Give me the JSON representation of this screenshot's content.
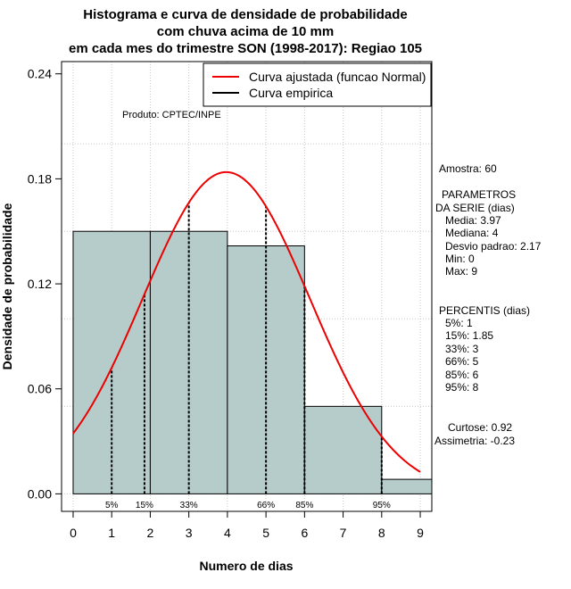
{
  "chart_data": {
    "type": "bar",
    "title_lines": [
      "Histograma e curva de densidade de probabilidade",
      "com chuva acima de 10 mm",
      "em cada mes do trimestre SON (1998-2017): Regiao 105"
    ],
    "xlabel": "Numero de dias",
    "ylabel": "Densidade de probabilidade",
    "xlim": [
      -0.3,
      9.3
    ],
    "ylim": [
      -0.01,
      0.247
    ],
    "x_ticks": [
      0,
      1,
      2,
      3,
      4,
      5,
      6,
      7,
      8,
      9
    ],
    "x_tick_labels": [
      "0",
      "1",
      "2",
      "3",
      "4",
      "5",
      "6",
      "7",
      "8",
      "9"
    ],
    "y_ticks": [
      0.0,
      0.06,
      0.12,
      0.18,
      0.24
    ],
    "y_tick_labels": [
      "0.00",
      "0.06",
      "0.12",
      "0.18",
      "0.24"
    ],
    "grid_x": [
      0,
      1,
      2,
      3,
      4,
      5,
      6,
      7,
      8,
      9
    ],
    "grid_y": [
      0.0,
      0.05,
      0.1,
      0.15,
      0.2
    ],
    "bars": [
      {
        "x0": 0,
        "x1": 2,
        "density": 0.15
      },
      {
        "x0": 2,
        "x1": 4,
        "density": 0.15
      },
      {
        "x0": 4,
        "x1": 6,
        "density": 0.1417
      },
      {
        "x0": 6,
        "x1": 8,
        "density": 0.05
      },
      {
        "x0": 8,
        "x1": 9.3,
        "density": 0.0083
      }
    ],
    "normal_curve": {
      "name": "Curva ajustada (funcao Normal)",
      "mean": 3.97,
      "sd": 2.17,
      "x_range": [
        0,
        9
      ],
      "color": "#ee0000"
    },
    "empirical_curve": {
      "name": "Curva empirica",
      "color": "#000000"
    },
    "percentile_lines": [
      {
        "label": "5%",
        "x": 1
      },
      {
        "label": "15%",
        "x": 1.85
      },
      {
        "label": "33%",
        "x": 3
      },
      {
        "label": "66%",
        "x": 5
      },
      {
        "label": "85%",
        "x": 6
      },
      {
        "label": "95%",
        "x": 8
      }
    ],
    "legend": {
      "position": "top-right",
      "entries": [
        "Curva ajustada (funcao Normal)",
        "Curva empirica"
      ]
    },
    "product_label": "Produto: CPTEC/INPE",
    "bar_color": "#b5cccb"
  },
  "side_panel": {
    "sample": "Amostra: 60",
    "params_lines": [
      "PARAMETROS",
      "DA SERIE (dias)",
      "Media: 3.97",
      "Mediana: 4",
      "Desvio padrao: 2.17",
      "Min: 0",
      "Max: 9"
    ],
    "percentile_lines": [
      "PERCENTIS (dias)",
      "5%: 1",
      "15%: 1.85",
      "33%: 3",
      "66%: 5",
      "85%: 6",
      "95%: 8"
    ],
    "shape_lines": [
      "Curtose: 0.92",
      "Assimetria: -0.23"
    ]
  }
}
